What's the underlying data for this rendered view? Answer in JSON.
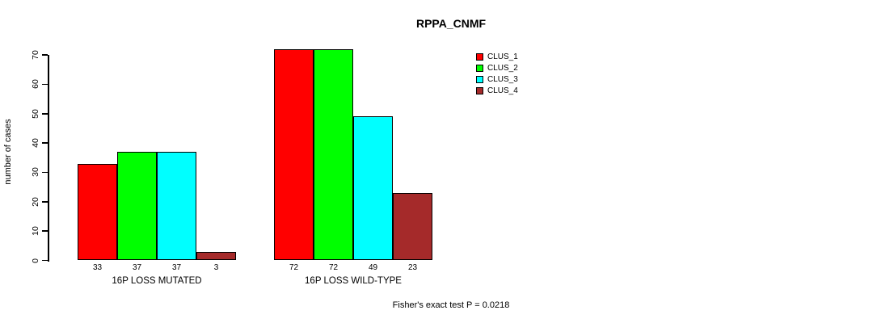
{
  "chart_data": {
    "type": "bar",
    "title": "RPPA_CNMF",
    "ylabel": "number of cases",
    "xlabel": "",
    "ylim": [
      0,
      70
    ],
    "yticks": [
      0,
      10,
      20,
      30,
      40,
      50,
      60,
      70
    ],
    "grid": false,
    "legend_position": "top-right",
    "groups": [
      "16P LOSS MUTATED",
      "16P LOSS WILD-TYPE"
    ],
    "series": [
      {
        "name": "CLUS_1",
        "color": "#ff0000",
        "values": [
          33,
          72
        ]
      },
      {
        "name": "CLUS_2",
        "color": "#00ff00",
        "values": [
          37,
          72
        ]
      },
      {
        "name": "CLUS_3",
        "color": "#00ffff",
        "values": [
          37,
          49
        ]
      },
      {
        "name": "CLUS_4",
        "color": "#a52a2a",
        "values": [
          3,
          23
        ]
      }
    ],
    "bar_value_labels": [
      [
        "33",
        "37",
        "37",
        "3"
      ],
      [
        "72",
        "72",
        "49",
        "23"
      ]
    ],
    "annotation": "Fisher's exact test P = 0.0218"
  }
}
